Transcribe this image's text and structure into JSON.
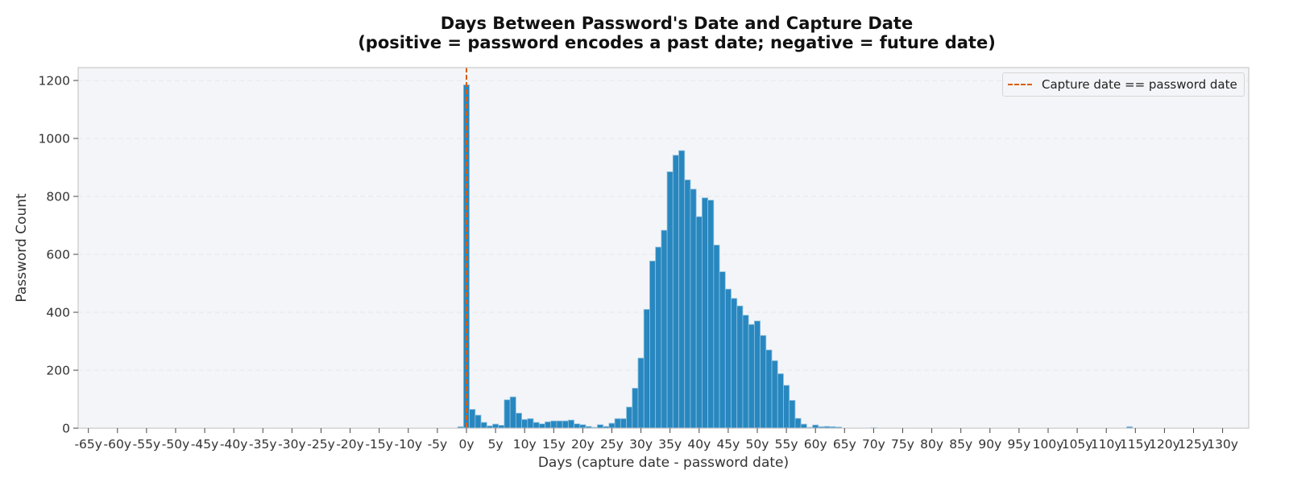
{
  "title": {
    "line1": "Days Between Password's Date and Capture Date",
    "line2": "(positive = password encodes a past date; negative = future date)"
  },
  "legend": {
    "items": [
      {
        "label": "Capture date == password date",
        "style": "dashed",
        "color": "#d95f02"
      }
    ]
  },
  "colors": {
    "bar": "#2887bf",
    "bar_edge": "#8fc2e2",
    "reference_line": "#d95f02",
    "plot_background": "#f4f5f8",
    "grid": "#e4e6ea",
    "spine": "#c8c8c8"
  },
  "chart_data": {
    "type": "bar",
    "title": "Days Between Password's Date and Capture Date (positive = password encodes a past date; negative = future date)",
    "xlabel": "Days (capture date - password date)",
    "ylabel": "Password Count",
    "xlim_years": [
      -67,
      133
    ],
    "ylim": [
      0,
      1245
    ],
    "grid": "horizontal dashed",
    "legend_position": "upper right",
    "bin_width_years": 1,
    "x_ticks": [
      "-65y",
      "-60y",
      "-55y",
      "-50y",
      "-45y",
      "-40y",
      "-35y",
      "-30y",
      "-25y",
      "-20y",
      "-15y",
      "-10y",
      "-5y",
      "0y",
      "5y",
      "10y",
      "15y",
      "20y",
      "25y",
      "30y",
      "35y",
      "40y",
      "45y",
      "50y",
      "55y",
      "60y",
      "65y",
      "70y",
      "75y",
      "80y",
      "85y",
      "90y",
      "95y",
      "100y",
      "105y",
      "110y",
      "115y",
      "120y",
      "125y",
      "130y"
    ],
    "x_tick_values": [
      -65,
      -60,
      -55,
      -50,
      -45,
      -40,
      -35,
      -30,
      -25,
      -20,
      -15,
      -10,
      -5,
      0,
      5,
      10,
      15,
      20,
      25,
      30,
      35,
      40,
      45,
      50,
      55,
      60,
      65,
      70,
      75,
      80,
      85,
      90,
      95,
      100,
      105,
      110,
      115,
      120,
      125,
      130
    ],
    "y_ticks": [
      0,
      200,
      400,
      600,
      800,
      1000,
      1200
    ],
    "reference_line": {
      "x": 0,
      "label": "Capture date == password date",
      "style": "dashed"
    },
    "series": [
      {
        "name": "Password Count",
        "x_years": [
          -1,
          0,
          1,
          2,
          3,
          4,
          5,
          6,
          7,
          8,
          9,
          10,
          11,
          12,
          13,
          14,
          15,
          16,
          17,
          18,
          19,
          20,
          21,
          22,
          23,
          24,
          25,
          26,
          27,
          28,
          29,
          30,
          31,
          32,
          33,
          34,
          35,
          36,
          37,
          38,
          39,
          40,
          41,
          42,
          43,
          44,
          45,
          46,
          47,
          48,
          49,
          50,
          51,
          52,
          53,
          54,
          55,
          56,
          57,
          58,
          59,
          60,
          61,
          62,
          63,
          64,
          70,
          114
        ],
        "values": [
          5,
          1185,
          65,
          45,
          20,
          8,
          14,
          10,
          98,
          108,
          52,
          30,
          33,
          20,
          15,
          22,
          25,
          25,
          25,
          28,
          15,
          12,
          6,
          3,
          12,
          6,
          17,
          33,
          33,
          73,
          138,
          242,
          410,
          577,
          625,
          683,
          885,
          942,
          958,
          857,
          825,
          730,
          795,
          787,
          632,
          540,
          480,
          448,
          422,
          390,
          358,
          370,
          320,
          270,
          233,
          188,
          148,
          96,
          34,
          14,
          3,
          11,
          5,
          6,
          5,
          4,
          2,
          5
        ]
      }
    ]
  }
}
